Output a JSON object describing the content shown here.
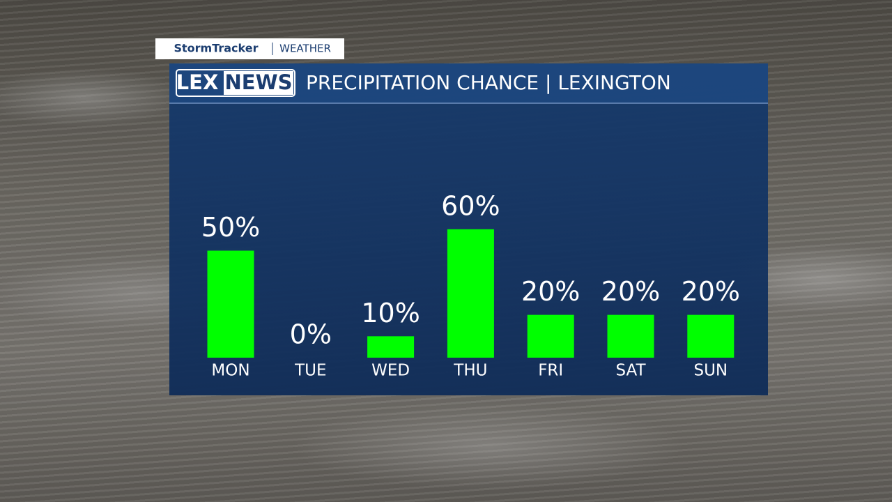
{
  "branding": {
    "show": "StormTracker",
    "section": "WEATHER",
    "logo": [
      "LEX",
      "NEWS"
    ]
  },
  "chart_data": {
    "type": "bar",
    "title": "PRECIPITATION CHANCE | LEXINGTON",
    "categories": [
      "MON",
      "TUE",
      "WED",
      "THU",
      "FRI",
      "SAT",
      "SUN"
    ],
    "values": [
      50,
      0,
      10,
      60,
      20,
      20,
      20
    ],
    "value_labels": [
      "50%",
      "0%",
      "10%",
      "60%",
      "20%",
      "20%",
      "20%"
    ],
    "color": "#00ff00"
  }
}
